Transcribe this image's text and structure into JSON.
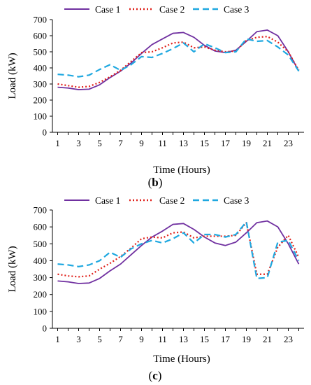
{
  "series_styles": [
    {
      "color": "#7030a0",
      "dash": ""
    },
    {
      "color": "#e0201a",
      "dash": "2,3"
    },
    {
      "color": "#1fa8e0",
      "dash": "9,5"
    }
  ],
  "chart_data": [
    {
      "type": "line",
      "caption_open": "(",
      "caption_letter": "b",
      "caption_close": ")",
      "xlabel": "Time (Hours)",
      "ylabel": "Load (kW)",
      "ylim": [
        0,
        700
      ],
      "yticks": [
        0,
        100,
        200,
        300,
        400,
        500,
        600,
        700
      ],
      "xlim": [
        0.5,
        24.5
      ],
      "xticks": [
        1,
        3,
        5,
        7,
        9,
        11,
        13,
        15,
        17,
        19,
        21,
        23
      ],
      "legend_position": "top",
      "grid": false,
      "x": [
        1,
        2,
        3,
        4,
        5,
        6,
        7,
        8,
        9,
        10,
        11,
        12,
        13,
        14,
        15,
        16,
        17,
        18,
        19,
        20,
        21,
        22,
        23,
        24
      ],
      "series": [
        {
          "name": "Case 1",
          "values": [
            280,
            275,
            265,
            268,
            295,
            340,
            380,
            430,
            490,
            545,
            580,
            615,
            620,
            590,
            540,
            505,
            495,
            510,
            565,
            625,
            635,
            600,
            500,
            380
          ]
        },
        {
          "name": "Case 2",
          "values": [
            300,
            290,
            280,
            285,
            310,
            345,
            385,
            440,
            495,
            500,
            525,
            555,
            560,
            525,
            530,
            510,
            500,
            505,
            570,
            590,
            595,
            560,
            500,
            385
          ]
        },
        {
          "name": "Case 3",
          "values": [
            360,
            355,
            345,
            355,
            390,
            420,
            385,
            420,
            470,
            465,
            490,
            520,
            555,
            500,
            550,
            525,
            495,
            500,
            580,
            565,
            570,
            530,
            480,
            380
          ]
        }
      ]
    },
    {
      "type": "line",
      "caption_open": "(",
      "caption_letter": "c",
      "caption_close": ")",
      "xlabel": "Time (Hours)",
      "ylabel": "Load (kW)",
      "ylim": [
        0,
        700
      ],
      "yticks": [
        0,
        100,
        200,
        300,
        400,
        500,
        600,
        700
      ],
      "xlim": [
        0.5,
        24.5
      ],
      "xticks": [
        1,
        3,
        5,
        7,
        9,
        11,
        13,
        15,
        17,
        19,
        21,
        23
      ],
      "legend_position": "top",
      "grid": false,
      "x": [
        1,
        2,
        3,
        4,
        5,
        6,
        7,
        8,
        9,
        10,
        11,
        12,
        13,
        14,
        15,
        16,
        17,
        18,
        19,
        20,
        21,
        22,
        23,
        24
      ],
      "series": [
        {
          "name": "Case 1",
          "values": [
            280,
            275,
            265,
            268,
            295,
            340,
            380,
            435,
            490,
            540,
            575,
            615,
            620,
            585,
            540,
            505,
            490,
            510,
            565,
            625,
            635,
            600,
            500,
            380
          ]
        },
        {
          "name": "Case 2",
          "values": [
            320,
            310,
            305,
            310,
            350,
            385,
            425,
            475,
            530,
            540,
            535,
            565,
            570,
            535,
            545,
            545,
            545,
            550,
            625,
            320,
            320,
            480,
            550,
            420
          ]
        },
        {
          "name": "Case 3",
          "values": [
            380,
            375,
            365,
            375,
            400,
            450,
            420,
            470,
            500,
            520,
            505,
            530,
            565,
            505,
            555,
            555,
            540,
            555,
            630,
            295,
            300,
            510,
            520,
            400
          ]
        }
      ]
    }
  ]
}
